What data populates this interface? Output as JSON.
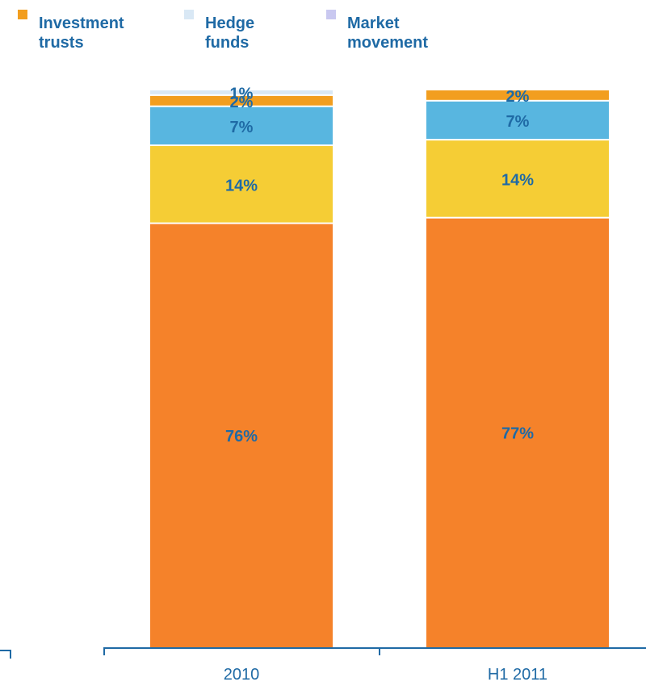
{
  "legend": [
    {
      "label": "Investment\ntrusts",
      "color": "#f29e1f"
    },
    {
      "label": "Hedge\nfunds",
      "color": "#d9e8f5"
    },
    {
      "label": "Market\nmovement",
      "color": "#c9c8f0"
    }
  ],
  "chart_data": {
    "type": "bar",
    "stacked": true,
    "categories": [
      "2010",
      "H1 2011"
    ],
    "series": [
      {
        "values": [
          76,
          77
        ],
        "color": "#f5822a",
        "labels": [
          "76%",
          "77%"
        ]
      },
      {
        "values": [
          14,
          14
        ],
        "color": "#f5cd35",
        "labels": [
          "14%",
          "14%"
        ]
      },
      {
        "values": [
          7,
          7
        ],
        "color": "#58b6e0",
        "labels": [
          "7%",
          "7%"
        ]
      },
      {
        "name": "Investment trusts",
        "values": [
          2,
          2
        ],
        "color": "#f29e1f",
        "labels": [
          "2%",
          "2%"
        ]
      },
      {
        "name": "Hedge funds",
        "values": [
          1,
          0
        ],
        "color": "#d9e8f5",
        "labels": [
          "1%",
          ""
        ]
      },
      {
        "name": "Market movement",
        "values": [
          0,
          0
        ],
        "color": "#c9c8f0",
        "labels": [
          "",
          ""
        ]
      }
    ],
    "ylim": [
      0,
      100
    ],
    "grid": false,
    "legend_position": "top"
  },
  "colors": {
    "axis": "#1f6aa5",
    "text": "#1f6aa5"
  }
}
